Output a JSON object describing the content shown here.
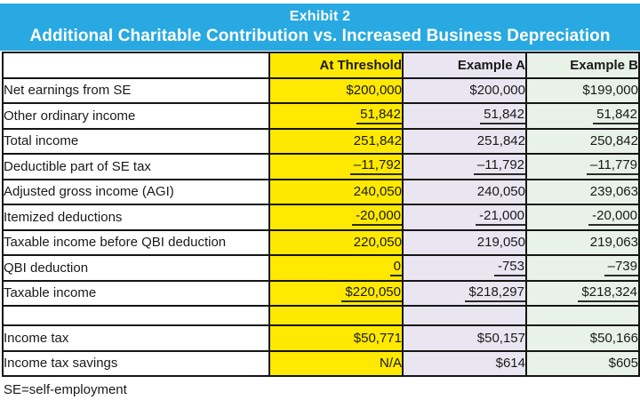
{
  "title": {
    "line1": "Exhibit 2",
    "line2": "Additional Charitable Contribution vs. Increased Business Depreciation"
  },
  "colors": {
    "banner_blue": "#29a9e1",
    "at_threshold_yellow": "#ffe900",
    "example_a_lavender": "#e9e6f2",
    "example_b_green": "#e8f2e8",
    "border_black": "#151515",
    "title_text": "#ffffff"
  },
  "columns": [
    {
      "key": "label",
      "label": ""
    },
    {
      "key": "at_threshold",
      "label": "At Threshold"
    },
    {
      "key": "example_a",
      "label": "Example A"
    },
    {
      "key": "example_b",
      "label": "Example B"
    }
  ],
  "rows": [
    {
      "label": "Net earnings from SE",
      "at_threshold": "$200,000",
      "example_a": "$200,000",
      "example_b": "$199,000",
      "underline": false,
      "spacer": false
    },
    {
      "label": "Other ordinary income",
      "at_threshold": "51,842",
      "example_a": "51,842",
      "example_b": "51,842",
      "underline": true,
      "spacer": false
    },
    {
      "label": "Total income",
      "at_threshold": "251,842",
      "example_a": "251,842",
      "example_b": "250,842",
      "underline": false,
      "spacer": false
    },
    {
      "label": "Deductible part of SE tax",
      "at_threshold": "–11,792",
      "example_a": "–11,792",
      "example_b": "–11,779",
      "underline": true,
      "spacer": false
    },
    {
      "label": "Adjusted gross income (AGI)",
      "at_threshold": "240,050",
      "example_a": "240,050",
      "example_b": "239,063",
      "underline": false,
      "spacer": false
    },
    {
      "label": "Itemized deductions",
      "at_threshold": "-20,000",
      "example_a": "-21,000",
      "example_b": "-20,000",
      "underline": true,
      "spacer": false
    },
    {
      "label": "Taxable income before QBI deduction",
      "at_threshold": "220,050",
      "example_a": "219,050",
      "example_b": "219,063",
      "underline": false,
      "spacer": false
    },
    {
      "label": "QBI deduction",
      "at_threshold": "0",
      "example_a": "-753",
      "example_b": "–739",
      "underline": true,
      "spacer": false
    },
    {
      "label": "Taxable income",
      "at_threshold": "$220,050",
      "example_a": "$218,297",
      "example_b": "$218,324",
      "underline": true,
      "spacer": false
    },
    {
      "label": "",
      "at_threshold": "",
      "example_a": "",
      "example_b": "",
      "underline": false,
      "spacer": true
    },
    {
      "label": "Income tax",
      "at_threshold": "$50,771",
      "example_a": "$50,157",
      "example_b": "$50,166",
      "underline": false,
      "spacer": false
    },
    {
      "label": "Income tax savings",
      "at_threshold": "N/A",
      "example_a": "$614",
      "example_b": "$605",
      "underline": false,
      "spacer": false
    }
  ],
  "footnote": "SE=self-employment"
}
